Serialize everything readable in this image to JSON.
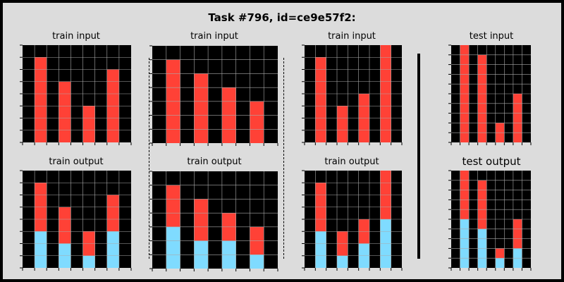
{
  "title": "Task #796, id=ce9e57f2:",
  "colors": {
    "background": "#000000",
    "gridline": "#aaaaaa",
    "red": "#ff4136",
    "blue": "#7fdbff"
  },
  "panels": [
    {
      "label": "train input",
      "rows": 8,
      "cols": 9,
      "bars": [
        [
          1,
          7
        ],
        [
          3,
          5
        ],
        [
          5,
          3
        ],
        [
          7,
          6
        ]
      ],
      "split": false
    },
    {
      "label": "train output",
      "rows": 8,
      "cols": 9,
      "bars": [
        [
          1,
          7
        ],
        [
          3,
          5
        ],
        [
          5,
          3
        ],
        [
          7,
          6
        ]
      ],
      "split": true
    },
    {
      "label": "train input",
      "rows": 7,
      "cols": 9,
      "bars": [
        [
          1,
          6
        ],
        [
          3,
          5
        ],
        [
          5,
          4
        ],
        [
          7,
          3
        ]
      ],
      "split": false
    },
    {
      "label": "train output",
      "rows": 7,
      "cols": 9,
      "bars": [
        [
          1,
          6
        ],
        [
          3,
          5
        ],
        [
          5,
          4
        ],
        [
          7,
          3
        ]
      ],
      "split": true
    },
    {
      "label": "train input",
      "rows": 8,
      "cols": 9,
      "bars": [
        [
          1,
          7
        ],
        [
          3,
          3
        ],
        [
          5,
          4
        ],
        [
          7,
          8
        ]
      ],
      "split": false
    },
    {
      "label": "train output",
      "rows": 8,
      "cols": 9,
      "bars": [
        [
          1,
          7
        ],
        [
          3,
          3
        ],
        [
          5,
          4
        ],
        [
          7,
          8
        ]
      ],
      "split": true
    },
    {
      "label": "test input",
      "rows": 10,
      "cols": 9,
      "bars": [
        [
          1,
          10
        ],
        [
          3,
          9
        ],
        [
          5,
          2
        ],
        [
          7,
          5
        ]
      ],
      "split": false
    },
    {
      "label": "test output",
      "rows": 10,
      "cols": 9,
      "bars": [
        [
          1,
          10
        ],
        [
          3,
          9
        ],
        [
          5,
          2
        ],
        [
          7,
          5
        ]
      ],
      "split": true
    }
  ]
}
